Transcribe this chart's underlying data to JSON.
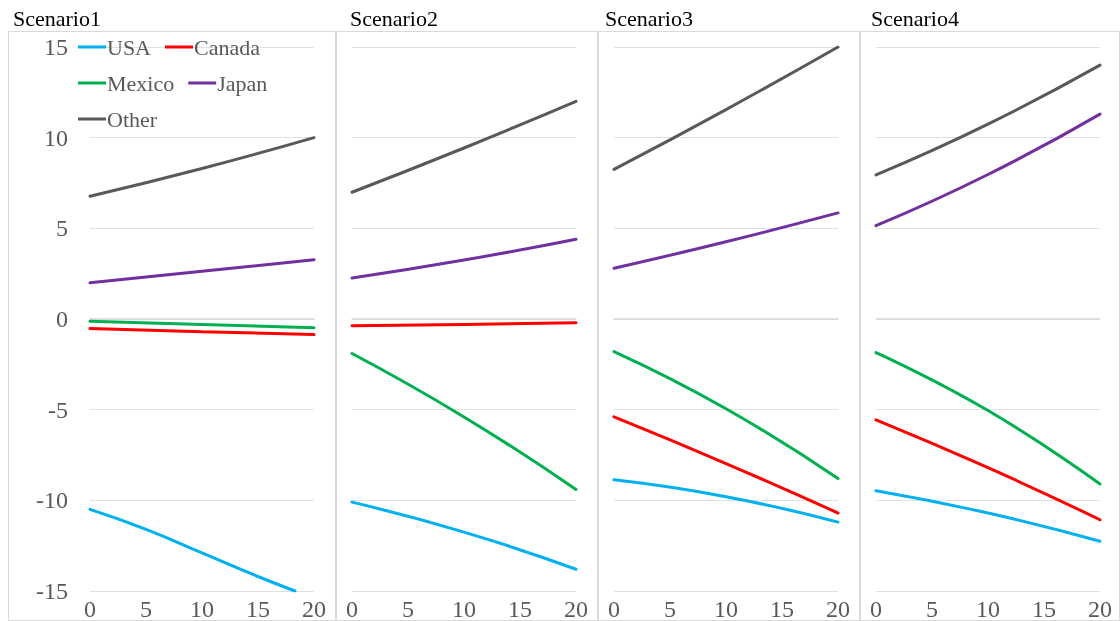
{
  "chart_data": [
    {
      "type": "line",
      "title": "Scenario1",
      "x": [
        0,
        10,
        20
      ],
      "xlim": [
        0,
        20
      ],
      "xticks": [
        0,
        5,
        10,
        15,
        20
      ],
      "ylim": [
        -15,
        15
      ],
      "yticks": [
        -15,
        -10,
        -5,
        0,
        5,
        10,
        15
      ],
      "grid": "y",
      "legend": "top left",
      "series": [
        {
          "name": "USA",
          "color": "#00b0f0",
          "x": [
            0,
            5,
            10,
            15,
            18.3
          ],
          "values": [
            -10.5,
            -11.6,
            -12.9,
            -14.2,
            -15
          ]
        },
        {
          "name": "Canada",
          "color": "#ff0000",
          "values": [
            -0.53,
            -0.7,
            -0.86
          ]
        },
        {
          "name": "Mexico",
          "color": "#00b050",
          "values": [
            -0.13,
            -0.3,
            -0.48
          ]
        },
        {
          "name": "Japan",
          "color": "#7030a0",
          "values": [
            2.0,
            2.63,
            3.27
          ]
        },
        {
          "name": "Other",
          "color": "#595959",
          "values": [
            6.77,
            8.3,
            10.0
          ]
        }
      ]
    },
    {
      "type": "line",
      "title": "Scenario2",
      "x": [
        0,
        10,
        20
      ],
      "xlim": [
        0,
        20
      ],
      "xticks": [
        0,
        5,
        10,
        15,
        20
      ],
      "ylim": [
        -15,
        15
      ],
      "yticks": [
        -15,
        -10,
        -5,
        0,
        5,
        10,
        15
      ],
      "grid": "y",
      "tick_labels": "x",
      "series": [
        {
          "color": "#00b0f0",
          "values": [
            -10.1,
            -11.75,
            -13.8
          ]
        },
        {
          "color": "#ff0000",
          "values": [
            -0.37,
            -0.3,
            -0.2
          ]
        },
        {
          "color": "#00b050",
          "values": [
            -1.9,
            -5.4,
            -9.4
          ]
        },
        {
          "color": "#7030a0",
          "values": [
            2.26,
            3.25,
            4.4
          ]
        },
        {
          "color": "#595959",
          "values": [
            6.99,
            9.43,
            12.0
          ]
        }
      ]
    },
    {
      "type": "line",
      "title": "Scenario3",
      "x": [
        0,
        10,
        20
      ],
      "xlim": [
        0,
        20
      ],
      "xticks": [
        0,
        5,
        10,
        15,
        20
      ],
      "ylim": [
        -15,
        15
      ],
      "yticks": [
        -15,
        -10,
        -5,
        0,
        5,
        10,
        15
      ],
      "grid": "y",
      "tick_labels": "x",
      "series": [
        {
          "color": "#00b0f0",
          "values": [
            -8.87,
            -9.8,
            -11.2
          ]
        },
        {
          "color": "#ff0000",
          "values": [
            -5.4,
            -7.97,
            -10.7
          ]
        },
        {
          "color": "#00b050",
          "values": [
            -1.8,
            -4.95,
            -8.8
          ]
        },
        {
          "color": "#7030a0",
          "values": [
            2.8,
            4.26,
            5.85
          ]
        },
        {
          "color": "#595959",
          "values": [
            8.25,
            11.55,
            15.0
          ]
        }
      ]
    },
    {
      "type": "line",
      "title": "Scenario4",
      "x": [
        0,
        10,
        20
      ],
      "xlim": [
        0,
        20
      ],
      "xticks": [
        0,
        5,
        10,
        15,
        20
      ],
      "ylim": [
        -15,
        15
      ],
      "yticks": [
        -15,
        -10,
        -5,
        0,
        5,
        10,
        15
      ],
      "grid": "y",
      "tick_labels": "x",
      "series": [
        {
          "color": "#00b0f0",
          "values": [
            -9.47,
            -10.7,
            -12.26
          ]
        },
        {
          "color": "#ff0000",
          "values": [
            -5.56,
            -8.2,
            -11.07
          ]
        },
        {
          "color": "#00b050",
          "values": [
            -1.85,
            -5.05,
            -9.1
          ]
        },
        {
          "color": "#7030a0",
          "values": [
            5.15,
            7.97,
            11.3
          ]
        },
        {
          "color": "#595959",
          "values": [
            7.95,
            10.75,
            14.0
          ]
        }
      ]
    }
  ]
}
